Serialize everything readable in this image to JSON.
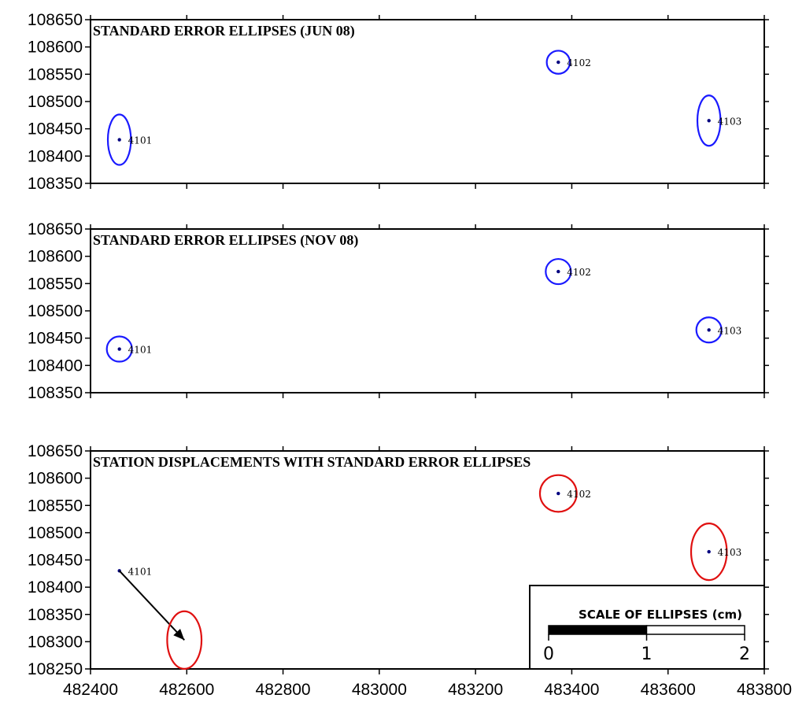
{
  "chart_data": [
    {
      "type": "scatter",
      "title": "STANDARD ERROR ELLIPSES (JUN 08)",
      "xlim": [
        482400,
        483800
      ],
      "ylim": [
        108350,
        108650
      ],
      "y_ticks": [
        "108650",
        "108600",
        "108550",
        "108500",
        "108450",
        "108400",
        "108350"
      ],
      "show_x_tick_labels": false,
      "ellipse_color": "#1a1aff",
      "stations": [
        {
          "id": "4101",
          "x": 482460,
          "y": 108430,
          "semi_x": 22,
          "semi_y": 48
        },
        {
          "id": "4102",
          "x": 483372,
          "y": 108572,
          "semi_x": 22,
          "semi_y": 22
        },
        {
          "id": "4103",
          "x": 483685,
          "y": 108465,
          "semi_x": 22,
          "semi_y": 48
        }
      ]
    },
    {
      "type": "scatter",
      "title": "STANDARD ERROR ELLIPSES (NOV 08)",
      "xlim": [
        482400,
        483800
      ],
      "ylim": [
        108350,
        108650
      ],
      "y_ticks": [
        "108650",
        "108600",
        "108550",
        "108500",
        "108450",
        "108400",
        "108350"
      ],
      "show_x_tick_labels": false,
      "ellipse_color": "#1a1aff",
      "stations": [
        {
          "id": "4101",
          "x": 482460,
          "y": 108430,
          "semi_x": 24,
          "semi_y": 24
        },
        {
          "id": "4102",
          "x": 483372,
          "y": 108572,
          "semi_x": 24,
          "semi_y": 24
        },
        {
          "id": "4103",
          "x": 483685,
          "y": 108465,
          "semi_x": 24,
          "semi_y": 24
        }
      ]
    },
    {
      "type": "scatter",
      "title": "STATION DISPLACEMENTS WITH STANDARD ERROR ELLIPSES",
      "xlim": [
        482400,
        483800
      ],
      "ylim": [
        108250,
        108650
      ],
      "y_ticks": [
        "108650",
        "108600",
        "108550",
        "108500",
        "108450",
        "108400",
        "108350",
        "108300",
        "108250"
      ],
      "x_ticks": [
        "482400",
        "482600",
        "482800",
        "483000",
        "483200",
        "483400",
        "483600",
        "483800"
      ],
      "show_x_tick_labels": true,
      "ellipse_color": "#e01010",
      "stations": [
        {
          "id": "4102",
          "x": 483372,
          "y": 108572,
          "semi_x": 35,
          "semi_y": 35
        },
        {
          "id": "4103",
          "x": 483685,
          "y": 108465,
          "semi_x": 34,
          "semi_y": 54
        }
      ],
      "displacements": [
        {
          "id": "4101",
          "from": [
            482460,
            108430
          ],
          "to": [
            482595,
            108303
          ],
          "ellipse_semi_x": 36,
          "ellipse_semi_y": 53
        }
      ],
      "scale_bar": {
        "title": "SCALE OF ELLIPSES (cm)",
        "ticks": [
          "0",
          "1",
          "2"
        ]
      }
    }
  ]
}
